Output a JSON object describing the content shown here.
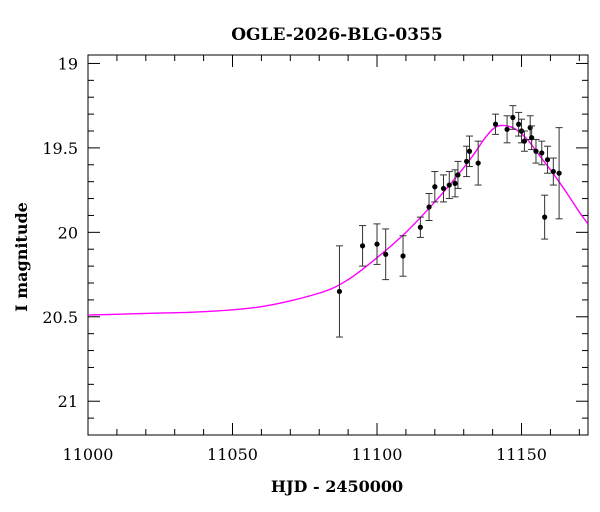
{
  "chart_data": {
    "type": "scatter",
    "title": "OGLE-2026-BLG-0355",
    "xlabel": "HJD - 2450000",
    "ylabel": "I magnitude",
    "xlim": [
      11000,
      11173
    ],
    "ylim": [
      21.2,
      18.95
    ],
    "y_inverted": true,
    "x_ticks": [
      11000,
      11050,
      11100,
      11150
    ],
    "x_tick_labels": [
      "11000",
      "11050",
      "11100",
      "11150"
    ],
    "y_ticks": [
      19,
      19.5,
      20,
      20.5,
      21
    ],
    "y_tick_labels": [
      "19",
      "19.5",
      "20",
      "20.5",
      "21"
    ],
    "grid": false,
    "legend": "none",
    "colors": {
      "model": "#ff00ff",
      "points": "#000000",
      "errorbars": "#333333"
    },
    "series": [
      {
        "kind": "observations",
        "points": [
          {
            "x": 11087,
            "y": 20.35,
            "err": 0.27
          },
          {
            "x": 11095,
            "y": 20.08,
            "err": 0.12
          },
          {
            "x": 11100,
            "y": 20.07,
            "err": 0.12
          },
          {
            "x": 11103,
            "y": 20.13,
            "err": 0.15
          },
          {
            "x": 11109,
            "y": 20.14,
            "err": 0.12
          },
          {
            "x": 11115,
            "y": 19.97,
            "err": 0.06
          },
          {
            "x": 11118,
            "y": 19.85,
            "err": 0.08
          },
          {
            "x": 11120,
            "y": 19.73,
            "err": 0.09
          },
          {
            "x": 11123,
            "y": 19.74,
            "err": 0.08
          },
          {
            "x": 11125,
            "y": 19.72,
            "err": 0.08
          },
          {
            "x": 11127,
            "y": 19.71,
            "err": 0.08
          },
          {
            "x": 11128,
            "y": 19.66,
            "err": 0.08
          },
          {
            "x": 11131,
            "y": 19.58,
            "err": 0.09
          },
          {
            "x": 11132,
            "y": 19.52,
            "err": 0.09
          },
          {
            "x": 11135,
            "y": 19.59,
            "err": 0.13
          },
          {
            "x": 11141,
            "y": 19.36,
            "err": 0.06
          },
          {
            "x": 11145,
            "y": 19.39,
            "err": 0.08
          },
          {
            "x": 11147,
            "y": 19.32,
            "err": 0.07
          },
          {
            "x": 11149,
            "y": 19.36,
            "err": 0.07
          },
          {
            "x": 11150,
            "y": 19.4,
            "err": 0.07
          },
          {
            "x": 11151,
            "y": 19.46,
            "err": 0.06
          },
          {
            "x": 11153,
            "y": 19.38,
            "err": 0.07
          },
          {
            "x": 11153.5,
            "y": 19.44,
            "err": 0.07
          },
          {
            "x": 11155,
            "y": 19.52,
            "err": 0.07
          },
          {
            "x": 11157,
            "y": 19.53,
            "err": 0.07
          },
          {
            "x": 11158,
            "y": 19.91,
            "err": 0.13
          },
          {
            "x": 11159,
            "y": 19.57,
            "err": 0.08
          },
          {
            "x": 11161,
            "y": 19.64,
            "err": 0.08
          },
          {
            "x": 11163,
            "y": 19.65,
            "err": 0.27
          }
        ]
      },
      {
        "kind": "model-curve",
        "points": [
          [
            11000,
            20.49
          ],
          [
            11020,
            20.48
          ],
          [
            11040,
            20.47
          ],
          [
            11060,
            20.44
          ],
          [
            11080,
            20.36
          ],
          [
            11090,
            20.28
          ],
          [
            11100,
            20.15
          ],
          [
            11110,
            20.0
          ],
          [
            11120,
            19.82
          ],
          [
            11128,
            19.66
          ],
          [
            11133,
            19.55
          ],
          [
            11137,
            19.45
          ],
          [
            11140,
            19.39
          ],
          [
            11142,
            19.37
          ],
          [
            11145,
            19.37
          ],
          [
            11148,
            19.39
          ],
          [
            11152,
            19.45
          ],
          [
            11156,
            19.54
          ],
          [
            11160,
            19.63
          ],
          [
            11165,
            19.75
          ],
          [
            11170,
            19.88
          ],
          [
            11173,
            19.95
          ]
        ]
      }
    ]
  }
}
